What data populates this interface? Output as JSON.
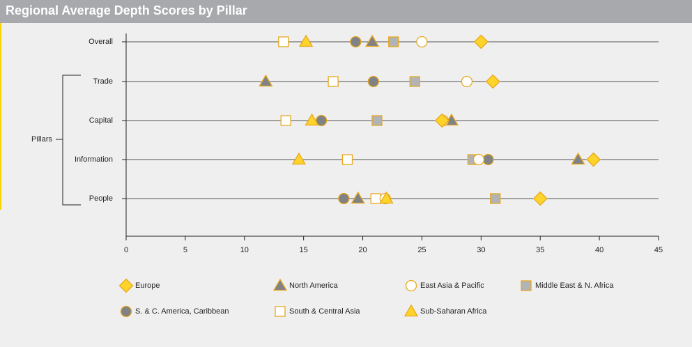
{
  "title": "Regional Average Depth Scores by Pillar",
  "colors": {
    "header_bg": "#a7a9ac",
    "accent_border": "#f5d400",
    "yellow": "#ffd42a",
    "yellow_stroke": "#e8a81c",
    "gray": "#808285",
    "light_gray": "#b2b3b5",
    "white": "#ffffff",
    "background": "#efefef",
    "axis": "#231f20"
  },
  "chart_data": {
    "type": "scatter",
    "title": "Regional Average Depth Scores by Pillar",
    "xlabel": "",
    "ylabel": "",
    "xlim": [
      0,
      45
    ],
    "x_ticks": [
      "0",
      "5",
      "10",
      "15",
      "20",
      "25",
      "30",
      "35",
      "40",
      "45"
    ],
    "categories": [
      "Overall",
      "Trade",
      "Capital",
      "Information",
      "People"
    ],
    "group_label": "Pillars",
    "grid": false,
    "legend_position": "bottom",
    "series": [
      {
        "name": "Europe",
        "marker": "diamond",
        "values": [
          30.0,
          31.0,
          26.7,
          39.5,
          35.0
        ]
      },
      {
        "name": "North America",
        "marker": "triangle-gray",
        "values": [
          20.8,
          11.8,
          27.5,
          38.2,
          19.6
        ]
      },
      {
        "name": "East Asia & Pacific",
        "marker": "circle-open",
        "values": [
          25.0,
          28.8,
          26.8,
          29.8,
          21.9
        ]
      },
      {
        "name": "Middle East & N. Africa",
        "marker": "square-gray",
        "values": [
          22.6,
          24.4,
          21.2,
          29.3,
          31.2
        ]
      },
      {
        "name": "S. & C. America, Caribbean",
        "marker": "circle-gray",
        "values": [
          19.4,
          20.9,
          16.5,
          30.6,
          18.4
        ]
      },
      {
        "name": "South & Central Asia",
        "marker": "square-open",
        "values": [
          13.3,
          17.5,
          13.5,
          18.7,
          21.1
        ]
      },
      {
        "name": "Sub-Saharan Africa",
        "marker": "triangle-yellow",
        "values": [
          15.2,
          null,
          15.7,
          14.6,
          22.0
        ]
      }
    ]
  }
}
